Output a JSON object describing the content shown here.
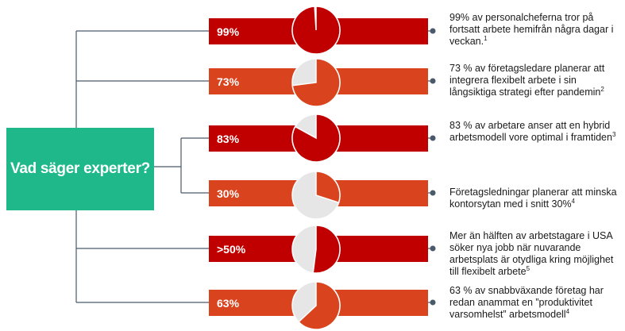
{
  "title": "Vad säger experter?",
  "colors": {
    "title_bg": "#1fb88a",
    "bar_dark": "#c00000",
    "bar_orange": "#d9431e",
    "pie_rest": "#e6e6e6",
    "line": "#4a5a6a"
  },
  "stats": [
    {
      "label": "99%",
      "share": 0.99,
      "bar_color": "#c00000",
      "text": "99% av personalcheferna tror på fortsatt arbete hemifrån några dagar i veckan.",
      "note": "1"
    },
    {
      "label": "73%",
      "share": 0.73,
      "bar_color": "#d9431e",
      "text": "73 % av företagsledare planerar att integrera flexibelt arbete i sin långsiktiga strategi efter pandemin",
      "note": "2"
    },
    {
      "label": "83%",
      "share": 0.83,
      "bar_color": "#c00000",
      "text": "83 % av arbetare anser att en hybrid arbetsmodell vore optimal i framtiden",
      "note": "3"
    },
    {
      "label": "30%",
      "share": 0.3,
      "bar_color": "#d9431e",
      "text": "Företagsledningar planerar att minska kontorsytan med i snitt 30%",
      "note": "4"
    },
    {
      "label": ">50%",
      "share": 0.52,
      "bar_color": "#c00000",
      "text": "Mer än hälften av arbetstagare i USA söker nya jobb när nuvarande arbetsplats är otydliga kring möjlighet till flexibelt arbete",
      "note": "5"
    },
    {
      "label": "63%",
      "share": 0.63,
      "bar_color": "#d9431e",
      "text": "63 % av snabbväxande företag har redan anammat en ”produktivitet varsomhelst” arbetsmodell",
      "note": "4"
    }
  ]
}
